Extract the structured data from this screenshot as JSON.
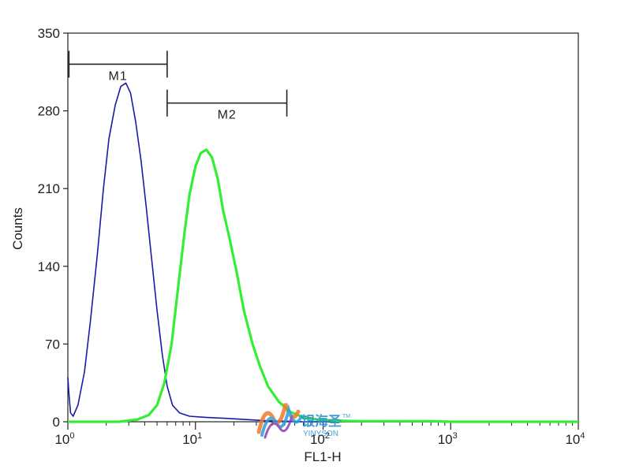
{
  "chart_data": {
    "type": "line",
    "title": "",
    "xlabel": "FL1-H",
    "ylabel": "Counts",
    "xscale": "log",
    "xlim": [
      1,
      10000
    ],
    "ylim": [
      0,
      350
    ],
    "xticks": [
      {
        "value": 1,
        "base": "10",
        "exp": "0"
      },
      {
        "value": 10,
        "base": "10",
        "exp": "1"
      },
      {
        "value": 100,
        "base": "10",
        "exp": "2"
      },
      {
        "value": 1000,
        "base": "10",
        "exp": "3"
      },
      {
        "value": 10000,
        "base": "10",
        "exp": "4"
      }
    ],
    "yticks": [
      "0",
      "70",
      "140",
      "210",
      "280",
      "350"
    ],
    "series": [
      {
        "color": "#1a1aa6",
        "points": [
          [
            1.0,
            40
          ],
          [
            1.02,
            25
          ],
          [
            1.05,
            8
          ],
          [
            1.1,
            5
          ],
          [
            1.2,
            15
          ],
          [
            1.35,
            45
          ],
          [
            1.5,
            90
          ],
          [
            1.7,
            150
          ],
          [
            1.9,
            210
          ],
          [
            2.1,
            255
          ],
          [
            2.35,
            285
          ],
          [
            2.6,
            302
          ],
          [
            2.85,
            305
          ],
          [
            3.1,
            296
          ],
          [
            3.4,
            270
          ],
          [
            3.75,
            235
          ],
          [
            4.1,
            195
          ],
          [
            4.5,
            150
          ],
          [
            5.0,
            100
          ],
          [
            5.5,
            60
          ],
          [
            6.0,
            32
          ],
          [
            6.6,
            15
          ],
          [
            7.5,
            8
          ],
          [
            9.0,
            5
          ],
          [
            12,
            4
          ],
          [
            18,
            3
          ],
          [
            25,
            2
          ],
          [
            35,
            1
          ],
          [
            50,
            0.5
          ],
          [
            70,
            0
          ],
          [
            10000,
            0
          ]
        ]
      },
      {
        "color": "#33ee33",
        "points": [
          [
            1.0,
            0
          ],
          [
            2.5,
            0
          ],
          [
            3.5,
            2
          ],
          [
            4.3,
            6
          ],
          [
            5.0,
            15
          ],
          [
            5.7,
            35
          ],
          [
            6.5,
            70
          ],
          [
            7.3,
            120
          ],
          [
            8.2,
            170
          ],
          [
            9.0,
            205
          ],
          [
            10.0,
            230
          ],
          [
            11.0,
            242
          ],
          [
            12.2,
            245
          ],
          [
            13.5,
            238
          ],
          [
            15.0,
            218
          ],
          [
            16.5,
            190
          ],
          [
            18.5,
            165
          ],
          [
            21,
            135
          ],
          [
            24,
            100
          ],
          [
            28,
            70
          ],
          [
            32,
            50
          ],
          [
            37,
            32
          ],
          [
            45,
            18
          ],
          [
            55,
            9
          ],
          [
            70,
            4
          ],
          [
            90,
            2
          ],
          [
            130,
            1
          ],
          [
            200,
            0.5
          ],
          [
            400,
            0.5
          ],
          [
            700,
            0.5
          ],
          [
            1000,
            0
          ],
          [
            10000,
            0
          ]
        ]
      }
    ],
    "markers": [
      {
        "label": "M1",
        "from": 1.02,
        "to": 6.0,
        "y": 322
      },
      {
        "label": "M2",
        "from": 6.0,
        "to": 52,
        "y": 287
      }
    ]
  },
  "watermark": {
    "text_cn": "银海圣",
    "text_en": "YINYSON",
    "tm": "TM"
  }
}
